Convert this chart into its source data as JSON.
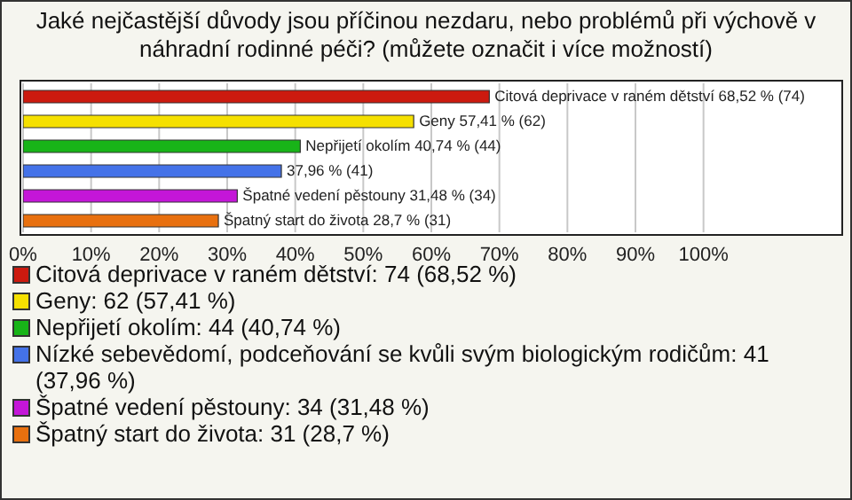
{
  "chart_data": {
    "type": "bar",
    "orientation": "horizontal",
    "stacked": true,
    "title": "Jaké nejčastější důvody jsou příčinou nezdaru, nebo problémů při výchově v náhradní rodinné péči? (můžete označit i více možností)",
    "categories": [
      null,
      null,
      null,
      null,
      null,
      null
    ],
    "series": [
      {
        "name": "Citová deprivace v raném dětství: 74 (68,52 %)",
        "color": "#cc1a0f",
        "values": [
          68.52,
          null,
          null,
          null,
          null,
          null
        ],
        "value_labels": [
          "Citová deprivace v raném dětství 68,52 % (74)",
          null,
          null,
          null,
          null,
          null
        ]
      },
      {
        "name": "Geny: 62 (57,41 %)",
        "color": "#f5e000",
        "values": [
          null,
          57.41,
          null,
          null,
          null,
          null
        ],
        "value_labels": [
          null,
          "Geny 57,41 % (62)",
          null,
          null,
          null,
          null
        ]
      },
      {
        "name": "Nepřijetí okolím: 44 (40,74 %)",
        "color": "#18b418",
        "values": [
          null,
          null,
          40.74,
          null,
          null,
          null
        ],
        "value_labels": [
          null,
          null,
          "Nepřijetí okolím 40,74 % (44)",
          null,
          null,
          null
        ]
      },
      {
        "name": "Nízké sebevědomí, podceňování se kvůli svým biologickým rodičům: 41 (37,96 %)",
        "color": "#4472e8",
        "values": [
          null,
          null,
          null,
          37.96,
          null,
          null
        ],
        "value_labels": [
          null,
          null,
          null,
          "37,96 % (41)",
          null,
          null
        ]
      },
      {
        "name": "Špatné vedení pěstouny: 34 (31,48 %)",
        "color": "#c416d8",
        "values": [
          null,
          null,
          null,
          null,
          31.48,
          null
        ],
        "value_labels": [
          null,
          null,
          null,
          null,
          "Špatné vedení pěstouny 31,48 % (34)",
          null
        ]
      },
      {
        "name": "Špatný start do života: 31 (28,7 %)",
        "color": "#e8700f",
        "values": [
          null,
          null,
          null,
          null,
          null,
          28.7
        ],
        "value_labels": [
          null,
          null,
          null,
          null,
          null,
          "Špatný start do života 28,7 % (31)"
        ]
      }
    ],
    "xlim": [
      0,
      120
    ],
    "xticks": [
      {
        "value": 0,
        "label": "0%"
      },
      {
        "value": 10,
        "label": "10%"
      },
      {
        "value": 20,
        "label": "20%"
      },
      {
        "value": 30,
        "label": "30%"
      },
      {
        "value": 40,
        "label": "40%"
      },
      {
        "value": 50,
        "label": "50%"
      },
      {
        "value": 60,
        "label": "60%"
      },
      {
        "value": 70,
        "label": "70%"
      },
      {
        "value": 80,
        "label": "80%"
      },
      {
        "value": 90,
        "label": "90%"
      },
      {
        "value": 100,
        "label": "100%"
      }
    ],
    "grid": "x",
    "legend": "bottom"
  }
}
